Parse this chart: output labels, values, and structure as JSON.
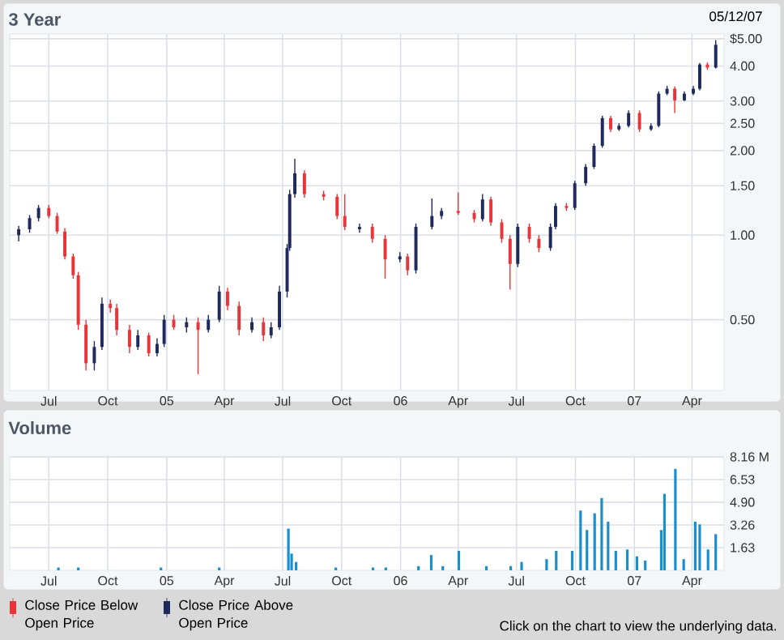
{
  "chart_data": [
    {
      "type": "candlestick",
      "title": "3 Year",
      "annotations": [
        "05/12/07"
      ],
      "log": true,
      "grid": true,
      "legend": "bottom",
      "xlim": [
        "2004-05-01",
        "2007-05-21"
      ],
      "xticks": [
        {
          "value": "2004-07-01",
          "label": "Jul"
        },
        {
          "value": "2004-10-01",
          "label": "Oct"
        },
        {
          "value": "2005-01-01",
          "label": "05"
        },
        {
          "value": "2005-04-01",
          "label": "Apr"
        },
        {
          "value": "2005-07-01",
          "label": "Jul"
        },
        {
          "value": "2005-10-01",
          "label": "Oct"
        },
        {
          "value": "2006-01-01",
          "label": "06"
        },
        {
          "value": "2006-04-01",
          "label": "Apr"
        },
        {
          "value": "2006-07-01",
          "label": "Jul"
        },
        {
          "value": "2006-10-01",
          "label": "Oct"
        },
        {
          "value": "2007-01-01",
          "label": "07"
        },
        {
          "value": "2007-04-01",
          "label": "Apr"
        }
      ],
      "ylim": [
        0.28,
        5.2
      ],
      "yticks": [
        {
          "value": 0.5,
          "label": "0.50"
        },
        {
          "value": 1,
          "label": "1.00"
        },
        {
          "value": 1.5,
          "label": "1.50"
        },
        {
          "value": 2,
          "label": "2.00"
        },
        {
          "value": 2.5,
          "label": "2.50"
        },
        {
          "value": 3,
          "label": "3.00"
        },
        {
          "value": 4,
          "label": "4.00"
        },
        {
          "value": 5,
          "label": "$5.00"
        }
      ],
      "series": [
        {
          "name": "Close Price Below Open Price",
          "color": "#e8353a",
          "x": [
            "2004-07-01",
            "2004-07-14",
            "2004-07-26",
            "2004-08-08",
            "2004-08-16",
            "2004-08-28",
            "2004-10-05",
            "2004-10-15",
            "2004-11-04",
            "2004-12-04",
            "2005-01-12",
            "2005-02-19",
            "2005-04-06",
            "2005-04-24",
            "2005-06-01",
            "2005-08-04",
            "2005-09-03",
            "2005-09-24",
            "2005-10-06",
            "2005-11-18",
            "2005-12-08",
            "2006-01-12",
            "2006-04-01",
            "2006-04-26",
            "2006-05-22",
            "2006-06-08",
            "2006-06-21",
            "2006-07-21",
            "2006-08-05",
            "2006-09-17",
            "2006-11-25",
            "2007-01-09",
            "2007-03-05",
            "2007-04-25"
          ],
          "ohlc": [
            [
              1.25,
              1.28,
              1.15,
              1.17
            ],
            [
              1.17,
              1.2,
              1.01,
              1.03
            ],
            [
              1.03,
              1.06,
              0.82,
              0.84
            ],
            [
              0.84,
              0.86,
              0.7,
              0.72
            ],
            [
              0.72,
              0.74,
              0.46,
              0.48
            ],
            [
              0.48,
              0.5,
              0.33,
              0.35
            ],
            [
              0.57,
              0.59,
              0.53,
              0.55
            ],
            [
              0.55,
              0.57,
              0.44,
              0.46
            ],
            [
              0.46,
              0.48,
              0.38,
              0.4
            ],
            [
              0.44,
              0.45,
              0.37,
              0.38
            ],
            [
              0.5,
              0.52,
              0.46,
              0.47
            ],
            [
              0.49,
              0.51,
              0.32,
              0.46
            ],
            [
              0.63,
              0.65,
              0.54,
              0.56
            ],
            [
              0.56,
              0.58,
              0.44,
              0.46
            ],
            [
              0.49,
              0.51,
              0.42,
              0.44
            ],
            [
              1.66,
              1.7,
              1.36,
              1.4
            ],
            [
              1.4,
              1.44,
              1.33,
              1.37
            ],
            [
              1.37,
              1.4,
              1.14,
              1.17
            ],
            [
              1.17,
              1.4,
              1.04,
              1.07
            ],
            [
              1.07,
              1.1,
              0.94,
              0.97
            ],
            [
              0.97,
              1.0,
              0.7,
              0.82
            ],
            [
              0.84,
              0.86,
              0.72,
              0.75
            ],
            [
              1.22,
              1.42,
              1.18,
              1.2
            ],
            [
              1.2,
              1.23,
              1.11,
              1.14
            ],
            [
              1.34,
              1.37,
              1.08,
              1.11
            ],
            [
              1.11,
              1.14,
              0.94,
              0.97
            ],
            [
              0.97,
              1.0,
              0.64,
              0.79
            ],
            [
              1.07,
              1.1,
              0.94,
              0.97
            ],
            [
              0.97,
              1.0,
              0.87,
              0.9
            ],
            [
              1.27,
              1.3,
              1.22,
              1.25
            ],
            [
              2.61,
              2.66,
              2.33,
              2.38
            ],
            [
              2.72,
              2.78,
              2.33,
              2.38
            ],
            [
              3.32,
              3.38,
              2.72,
              3.02
            ],
            [
              4.05,
              4.12,
              3.88,
              3.95
            ]
          ]
        },
        {
          "name": "Close Price Above Open Price",
          "color": "#1f2a5c",
          "x": [
            "2004-05-15",
            "2004-06-01",
            "2004-06-15",
            "2004-09-10",
            "2004-09-22",
            "2004-11-17",
            "2004-12-17",
            "2004-12-28",
            "2005-02-01",
            "2005-03-07",
            "2005-03-24",
            "2005-05-14",
            "2005-06-13",
            "2005-06-26",
            "2005-07-08",
            "2005-07-12",
            "2005-07-20",
            "2005-10-29",
            "2005-12-31",
            "2006-01-25",
            "2006-02-19",
            "2006-03-06",
            "2006-05-09",
            "2006-07-03",
            "2006-08-23",
            "2006-08-31",
            "2006-09-30",
            "2006-10-17",
            "2006-10-30",
            "2006-11-12",
            "2006-12-08",
            "2006-12-23",
            "2007-01-27",
            "2007-02-08",
            "2007-02-21",
            "2007-03-20",
            "2007-04-03",
            "2007-04-13",
            "2007-05-08"
          ],
          "ohlc": [
            [
              1.0,
              1.08,
              0.95,
              1.05
            ],
            [
              1.05,
              1.18,
              1.02,
              1.15
            ],
            [
              1.15,
              1.28,
              1.12,
              1.25
            ],
            [
              0.35,
              0.42,
              0.33,
              0.4
            ],
            [
              0.4,
              0.6,
              0.39,
              0.57
            ],
            [
              0.4,
              0.46,
              0.39,
              0.44
            ],
            [
              0.38,
              0.43,
              0.37,
              0.41
            ],
            [
              0.41,
              0.52,
              0.4,
              0.5
            ],
            [
              0.47,
              0.51,
              0.45,
              0.49
            ],
            [
              0.46,
              0.52,
              0.45,
              0.5
            ],
            [
              0.5,
              0.66,
              0.49,
              0.63
            ],
            [
              0.46,
              0.51,
              0.45,
              0.49
            ],
            [
              0.44,
              0.49,
              0.43,
              0.47
            ],
            [
              0.47,
              0.66,
              0.46,
              0.63
            ],
            [
              0.63,
              0.93,
              0.6,
              0.9
            ],
            [
              0.9,
              1.45,
              0.88,
              1.4
            ],
            [
              1.4,
              1.87,
              1.36,
              1.66
            ],
            [
              1.05,
              1.1,
              1.02,
              1.07
            ],
            [
              0.82,
              0.87,
              0.8,
              0.84
            ],
            [
              0.75,
              1.1,
              0.73,
              1.07
            ],
            [
              1.07,
              1.35,
              1.05,
              1.17
            ],
            [
              1.17,
              1.25,
              1.14,
              1.22
            ],
            [
              1.14,
              1.4,
              1.12,
              1.34
            ],
            [
              0.79,
              1.1,
              0.77,
              1.07
            ],
            [
              0.9,
              1.1,
              0.88,
              1.07
            ],
            [
              1.07,
              1.3,
              1.05,
              1.27
            ],
            [
              1.25,
              1.56,
              1.23,
              1.53
            ],
            [
              1.53,
              1.79,
              1.5,
              1.75
            ],
            [
              1.75,
              2.12,
              1.72,
              2.08
            ],
            [
              2.08,
              2.66,
              2.05,
              2.61
            ],
            [
              2.38,
              2.5,
              2.35,
              2.45
            ],
            [
              2.45,
              2.78,
              2.42,
              2.72
            ],
            [
              2.38,
              2.5,
              2.35,
              2.45
            ],
            [
              2.45,
              3.25,
              2.42,
              3.19
            ],
            [
              3.19,
              3.4,
              3.15,
              3.32
            ],
            [
              3.02,
              3.25,
              3.0,
              3.19
            ],
            [
              3.19,
              3.4,
              3.15,
              3.32
            ],
            [
              3.32,
              4.1,
              3.28,
              4.05
            ],
            [
              3.95,
              4.95,
              3.92,
              4.76
            ]
          ]
        }
      ]
    },
    {
      "type": "bar",
      "title": "Volume",
      "annotations": [
        "Click on the chart to view the underlying data."
      ],
      "grid": true,
      "color": "#1a8fd0",
      "xlim": [
        "2004-05-01",
        "2007-05-21"
      ],
      "xticks": [
        {
          "value": "2004-07-01",
          "label": "Jul"
        },
        {
          "value": "2004-10-01",
          "label": "Oct"
        },
        {
          "value": "2005-01-01",
          "label": "05"
        },
        {
          "value": "2005-04-01",
          "label": "Apr"
        },
        {
          "value": "2005-07-01",
          "label": "Jul"
        },
        {
          "value": "2005-10-01",
          "label": "Oct"
        },
        {
          "value": "2006-01-01",
          "label": "06"
        },
        {
          "value": "2006-04-01",
          "label": "Apr"
        },
        {
          "value": "2006-07-01",
          "label": "Jul"
        },
        {
          "value": "2006-10-01",
          "label": "Oct"
        },
        {
          "value": "2007-01-01",
          "label": "07"
        },
        {
          "value": "2007-04-01",
          "label": "Apr"
        }
      ],
      "ylim": [
        0,
        8.16
      ],
      "yticks": [
        {
          "value": 1.63,
          "label": "1.63"
        },
        {
          "value": 3.26,
          "label": "3.26"
        },
        {
          "value": 4.9,
          "label": "4.90"
        },
        {
          "value": 6.53,
          "label": "6.53"
        },
        {
          "value": 8.16,
          "label": "8.16 M"
        }
      ],
      "x": [
        "2004-07-16",
        "2004-08-16",
        "2004-12-23",
        "2005-03-24",
        "2005-07-10",
        "2005-07-15",
        "2005-07-22",
        "2005-09-22",
        "2005-11-19",
        "2005-12-09",
        "2006-01-29",
        "2006-02-18",
        "2006-03-08",
        "2006-04-02",
        "2006-05-15",
        "2006-06-22",
        "2006-07-09",
        "2006-08-17",
        "2006-09-01",
        "2006-09-26",
        "2006-10-09",
        "2006-10-19",
        "2006-10-31",
        "2006-11-11",
        "2006-11-21",
        "2006-12-03",
        "2006-12-21",
        "2007-01-05",
        "2007-01-18",
        "2007-02-12",
        "2007-02-17",
        "2007-03-06",
        "2007-03-19",
        "2007-04-06",
        "2007-04-13",
        "2007-04-26",
        "2007-05-08"
      ],
      "values": [
        0.2,
        0.2,
        0.2,
        0.2,
        3.0,
        1.2,
        0.6,
        0.2,
        0.2,
        0.2,
        0.3,
        1.1,
        0.3,
        1.4,
        0.3,
        0.3,
        0.6,
        0.8,
        1.4,
        1.4,
        4.3,
        2.9,
        4.1,
        5.2,
        3.5,
        1.4,
        1.5,
        1.0,
        0.7,
        2.9,
        5.5,
        7.3,
        0.8,
        3.5,
        3.3,
        1.5,
        2.6
      ]
    }
  ]
}
